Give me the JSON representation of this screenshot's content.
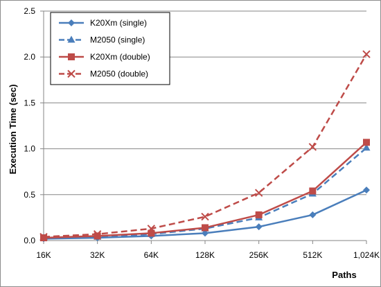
{
  "chart_data": {
    "type": "line",
    "title": "",
    "xlabel": "Paths",
    "ylabel": "Execution Time (sec)",
    "categories": [
      "16K",
      "32K",
      "64K",
      "128K",
      "256K",
      "512K",
      "1,024K"
    ],
    "ylim": [
      0,
      2.5
    ],
    "yticks": [
      "0.0",
      "0.5",
      "1.0",
      "1.5",
      "2.0",
      "2.5"
    ],
    "grid": "horizontal",
    "legend_position": "top-left",
    "series": [
      {
        "name": "K20Xm (single)",
        "values": [
          0.02,
          0.03,
          0.05,
          0.08,
          0.15,
          0.28,
          0.55
        ],
        "color": "#4a7ebb",
        "dash": "solid",
        "marker": "diamond"
      },
      {
        "name": "M2050 (single)",
        "values": [
          0.03,
          0.04,
          0.07,
          0.13,
          0.25,
          0.51,
          1.01
        ],
        "color": "#4a7ebb",
        "dash": "dashed",
        "marker": "triangle"
      },
      {
        "name": "K20Xm (double)",
        "values": [
          0.03,
          0.05,
          0.08,
          0.14,
          0.28,
          0.54,
          1.07
        ],
        "color": "#be4b48",
        "dash": "solid",
        "marker": "square"
      },
      {
        "name": "M2050 (double)",
        "values": [
          0.04,
          0.07,
          0.13,
          0.26,
          0.52,
          1.02,
          2.03
        ],
        "color": "#be4b48",
        "dash": "dashed",
        "marker": "x"
      }
    ]
  }
}
